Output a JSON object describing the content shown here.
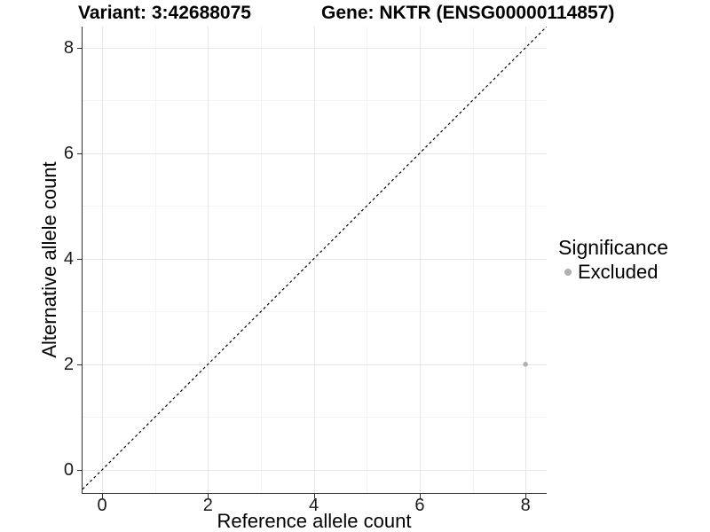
{
  "titles": {
    "variant": "Variant: 3:42688075",
    "gene": "Gene: NKTR (ENSG00000114857)"
  },
  "chart_data": {
    "type": "scatter",
    "title_left": "Variant: 3:42688075",
    "title_right": "Gene: NKTR (ENSG00000114857)",
    "xlabel": "Reference allele count",
    "ylabel": "Alternative allele count",
    "xlim": [
      -0.37,
      8.4
    ],
    "ylim": [
      -0.44,
      8.4
    ],
    "x_ticks": [
      0,
      2,
      4,
      6,
      8
    ],
    "y_ticks": [
      0,
      2,
      4,
      6,
      8
    ],
    "x_minor": [
      1,
      3,
      5,
      7
    ],
    "y_minor": [
      1,
      3,
      5,
      7
    ],
    "grid": true,
    "points": [
      {
        "x": 8,
        "y": 2,
        "series": "Excluded"
      }
    ],
    "reference_line": {
      "type": "identity",
      "slope": 1,
      "intercept": 0,
      "style": "dashed"
    },
    "legend": {
      "title": "Significance",
      "position": "right",
      "entries": [
        "Excluded"
      ]
    },
    "colors": {
      "point": "#b0b0b0",
      "legend_key": "#b0b0b0",
      "grid_major": "#e7e7e7",
      "grid_minor": "#f4f4f4",
      "axis": "#333333",
      "dashed_line": "#000000",
      "tick_text": "#1a1a1a"
    }
  }
}
